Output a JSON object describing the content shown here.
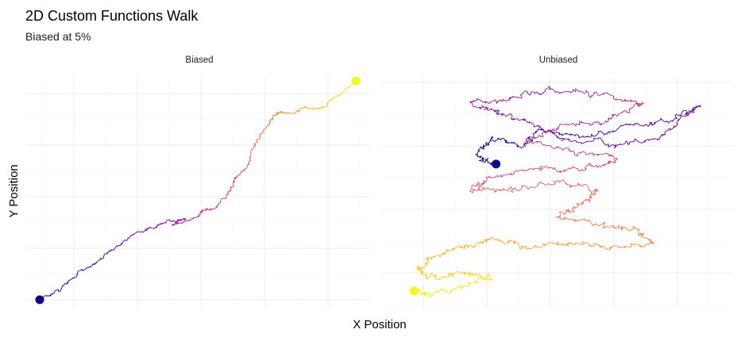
{
  "chart_data": {
    "type": "line",
    "title": "2D Custom Functions Walk",
    "subtitle": "Biased at 5%",
    "xlabel": "X Position",
    "ylabel": "Y Position",
    "color_scale": [
      "#0d0887",
      "#6a00a8",
      "#b12a90",
      "#e16462",
      "#fca636",
      "#f0f921"
    ],
    "facets": [
      {
        "label": "Biased",
        "start_color": "#0d0887",
        "end_color": "#f0f921",
        "path_waypoints": [
          [
            0,
            0
          ],
          [
            6,
            4
          ],
          [
            12,
            12
          ],
          [
            19,
            18
          ],
          [
            24,
            24
          ],
          [
            30,
            30
          ],
          [
            36,
            33
          ],
          [
            40,
            36
          ],
          [
            46,
            37
          ],
          [
            42,
            34
          ],
          [
            50,
            38
          ],
          [
            52,
            41
          ],
          [
            56,
            42
          ],
          [
            60,
            50
          ],
          [
            62,
            56
          ],
          [
            66,
            62
          ],
          [
            68,
            71
          ],
          [
            72,
            79
          ],
          [
            74,
            84
          ],
          [
            76,
            86
          ],
          [
            80,
            85
          ],
          [
            84,
            88
          ],
          [
            88,
            87
          ],
          [
            92,
            91
          ],
          [
            96,
            95
          ],
          [
            100,
            100
          ]
        ]
      },
      {
        "label": "Unbiased",
        "start_color": "#0d0887",
        "end_color": "#f0f921",
        "path_waypoints": [
          [
            30,
            62
          ],
          [
            24,
            66
          ],
          [
            28,
            74
          ],
          [
            38,
            70
          ],
          [
            45,
            78
          ],
          [
            60,
            74
          ],
          [
            75,
            80
          ],
          [
            88,
            82
          ],
          [
            96,
            88
          ],
          [
            85,
            76
          ],
          [
            70,
            70
          ],
          [
            52,
            74
          ],
          [
            40,
            82
          ],
          [
            30,
            86
          ],
          [
            22,
            90
          ],
          [
            35,
            92
          ],
          [
            48,
            96
          ],
          [
            62,
            94
          ],
          [
            78,
            90
          ],
          [
            66,
            82
          ],
          [
            50,
            78
          ],
          [
            40,
            72
          ],
          [
            55,
            68
          ],
          [
            70,
            64
          ],
          [
            60,
            60
          ],
          [
            45,
            60
          ],
          [
            28,
            56
          ],
          [
            22,
            50
          ],
          [
            35,
            50
          ],
          [
            50,
            54
          ],
          [
            64,
            50
          ],
          [
            58,
            44
          ],
          [
            50,
            38
          ],
          [
            64,
            34
          ],
          [
            76,
            32
          ],
          [
            82,
            26
          ],
          [
            68,
            24
          ],
          [
            54,
            26
          ],
          [
            40,
            24
          ],
          [
            30,
            28
          ],
          [
            20,
            24
          ],
          [
            10,
            20
          ],
          [
            4,
            14
          ],
          [
            10,
            10
          ],
          [
            20,
            12
          ],
          [
            28,
            10
          ],
          [
            18,
            6
          ],
          [
            8,
            2
          ],
          [
            3,
            4
          ]
        ]
      }
    ]
  }
}
